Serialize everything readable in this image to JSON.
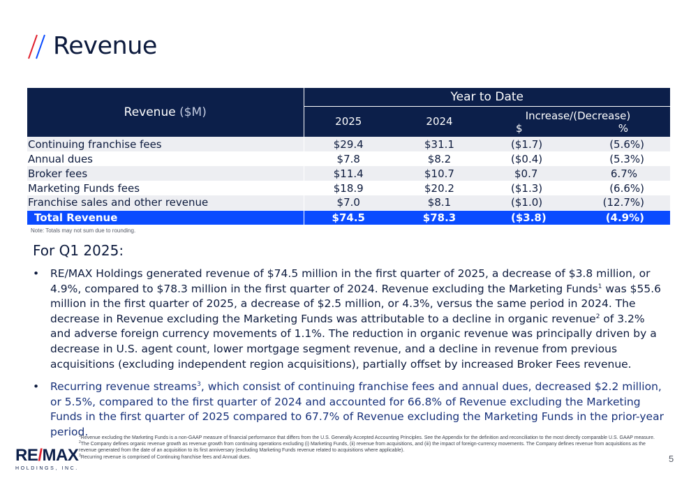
{
  "header": {
    "title": "Revenue"
  },
  "table": {
    "label_header": "Revenue",
    "label_unit": "($M)",
    "group_header": "Year to Date",
    "col_2025": "2025",
    "col_2024": "2024",
    "col_change": "Increase/(Decrease)",
    "col_dollar": "$",
    "col_pct": "%",
    "rows": [
      {
        "label": "Continuing franchise fees",
        "y2025": "$29.4",
        "y2024": "$31.1",
        "chg": "($1.7)",
        "pct": "(5.6%)"
      },
      {
        "label": "Annual dues",
        "y2025": "$7.8",
        "y2024": "$8.2",
        "chg": "($0.4)",
        "pct": "(5.3%)"
      },
      {
        "label": "Broker fees",
        "y2025": "$11.4",
        "y2024": "$10.7",
        "chg": "$0.7",
        "pct": "6.7%"
      },
      {
        "label": "Marketing Funds fees",
        "y2025": "$18.9",
        "y2024": "$20.2",
        "chg": "($1.3)",
        "pct": "(6.6%)"
      },
      {
        "label": "Franchise sales and other revenue",
        "y2025": "$7.0",
        "y2024": "$8.1",
        "chg": "($1.0)",
        "pct": "(12.7%)"
      }
    ],
    "total": {
      "label": "Total Revenue",
      "y2025": "$74.5",
      "y2024": "$78.3",
      "chg": "($3.8)",
      "pct": "(4.9%)"
    },
    "note": "Note: Totals may not sum due to rounding."
  },
  "section": {
    "subhead": "For Q1 2025:"
  },
  "bullets": {
    "b1_a": "RE/MAX Holdings generated revenue of $74.5 million in the first quarter of 2025, a decrease of $3.8 million, or 4.9%, compared to $78.3 million in the first quarter of 2024. Revenue excluding the Marketing Funds",
    "b1_sup1": "1",
    "b1_b": " was $55.6 million in the first quarter of 2025, a decrease of $2.5 million, or 4.3%, versus the same period in 2024. The decrease in Revenue excluding the Marketing Funds was attributable to a decline in organic revenue",
    "b1_sup2": "2",
    "b1_c": " of 3.2% and adverse foreign currency movements of 1.1%. The reduction in organic revenue was principally driven by a decrease in U.S. agent count, lower mortgage segment revenue, and a decline in revenue from previous acquisitions (excluding independent region acquisitions), partially offset by increased Broker Fees revenue.",
    "b2_a": "Recurring revenue streams",
    "b2_sup": "3",
    "b2_b": ", which consist of continuing franchise fees and annual dues, decreased $2.2 million, or 5.5%, compared to the first quarter of 2024 and accounted for 66.8% of Revenue excluding the Marketing Funds in the first quarter of 2025 compared to 67.7% of Revenue excluding the Marketing Funds in the prior-year period."
  },
  "footnotes": {
    "f1_sup": "1",
    "f1": "Revenue excluding the Marketing Funds is a non-GAAP measure of financial performance that differs from the U.S. Generally Accepted Accounting Principles. See the Appendix for the definition and reconciliation to the most directly comparable U.S. GAAP measure.",
    "f2_sup": "2",
    "f2": "The Company defines organic revenue growth as revenue growth from continuing operations excluding (i) Marketing Funds, (ii) revenue from acquisitions, and (iii) the impact of foreign-currency movements. The Company defines revenue from acquisitions as the revenue generated from the date of an acquisition to its first anniversary (excluding Marketing Funds revenue related to acquisitions where applicable).",
    "f3_sup": "3",
    "f3": "Recurring revenue is comprised of Continuing franchise fees and Annual dues."
  },
  "logo": {
    "main_a": "RE",
    "main_slash": "/",
    "main_b": "MAX",
    "sub": "HOLDINGS, INC."
  },
  "page_number": "5",
  "colors": {
    "navy": "#0c1f4a",
    "total_blue": "#0a4bff",
    "accent_red": "#e0202e",
    "alt_row": "#edeef2"
  }
}
